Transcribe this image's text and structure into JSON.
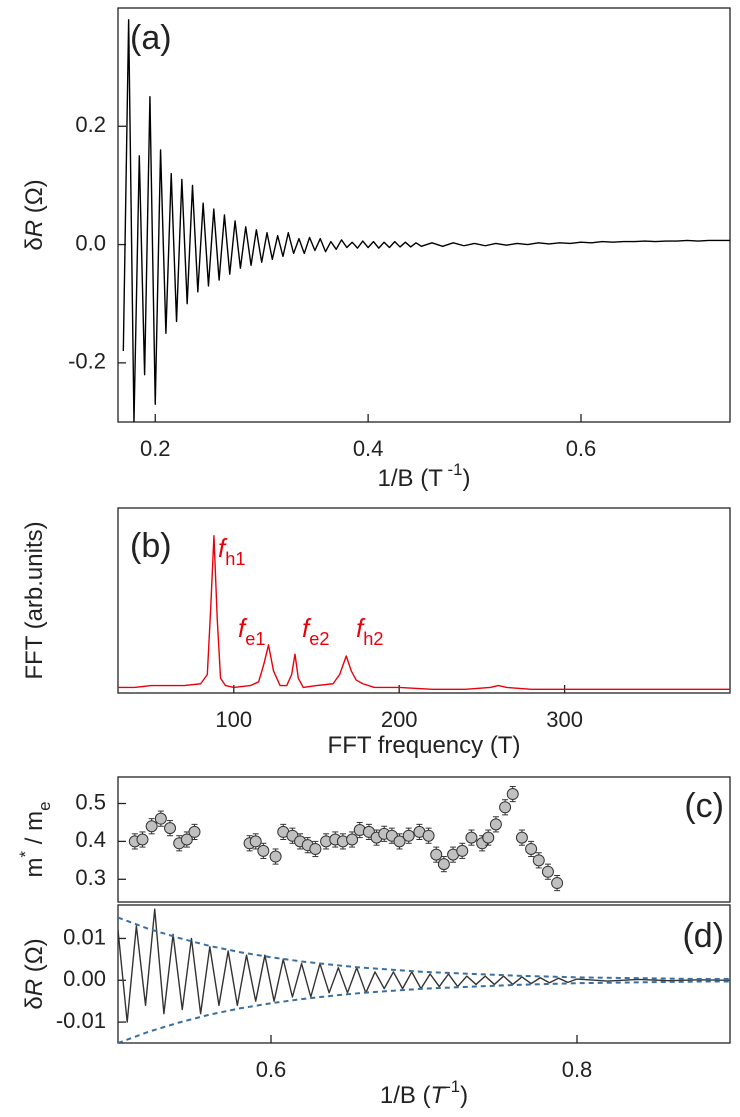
{
  "chart_data": [
    {
      "type": "line",
      "panel_label": "(a)",
      "ylabel": [
        {
          "text": "δ"
        },
        {
          "text": "R",
          "italic": true
        },
        {
          "text": " (Ω)"
        }
      ],
      "xlabel": [
        {
          "text": "1/B (T"
        },
        {
          "text": " -1",
          "sup": true
        },
        {
          "text": ")"
        }
      ],
      "xlim": [
        0.165,
        0.74
      ],
      "ylim": [
        -0.3,
        0.4
      ],
      "xticks": [
        0.2,
        0.4,
        0.6
      ],
      "yticks": [
        -0.2,
        {
          "value": 0,
          "label": "0.0"
        },
        0.2
      ],
      "series": [
        {
          "color": "#000000",
          "x": [
            0.17,
            0.175,
            0.18,
            0.185,
            0.19,
            0.195,
            0.2,
            0.205,
            0.21,
            0.215,
            0.22,
            0.225,
            0.23,
            0.235,
            0.24,
            0.245,
            0.25,
            0.255,
            0.26,
            0.265,
            0.27,
            0.275,
            0.28,
            0.285,
            0.29,
            0.295,
            0.3,
            0.305,
            0.31,
            0.315,
            0.32,
            0.325,
            0.33,
            0.335,
            0.34,
            0.345,
            0.35,
            0.355,
            0.36,
            0.365,
            0.37,
            0.375,
            0.38,
            0.385,
            0.39,
            0.395,
            0.4,
            0.405,
            0.41,
            0.415,
            0.42,
            0.425,
            0.43,
            0.435,
            0.44,
            0.445,
            0.45,
            0.46,
            0.47,
            0.48,
            0.49,
            0.5,
            0.51,
            0.52,
            0.53,
            0.54,
            0.55,
            0.56,
            0.57,
            0.58,
            0.59,
            0.6,
            0.61,
            0.62,
            0.63,
            0.64,
            0.65,
            0.66,
            0.67,
            0.68,
            0.69,
            0.7,
            0.71,
            0.72,
            0.73,
            0.74
          ],
          "values": [
            -0.18,
            0.38,
            -0.3,
            0.15,
            -0.22,
            0.25,
            -0.27,
            0.16,
            -0.15,
            0.12,
            -0.13,
            0.11,
            -0.1,
            0.1,
            -0.08,
            0.07,
            -0.07,
            0.06,
            -0.06,
            0.05,
            -0.05,
            0.04,
            -0.04,
            0.03,
            -0.035,
            0.025,
            -0.03,
            0.02,
            -0.025,
            0.015,
            -0.02,
            0.02,
            -0.015,
            0.01,
            -0.015,
            0.012,
            -0.01,
            0.01,
            -0.012,
            0.005,
            -0.008,
            0.008,
            -0.005,
            0.004,
            -0.006,
            0.006,
            -0.005,
            0.005,
            -0.006,
            0.004,
            -0.005,
            0.005,
            -0.004,
            0.004,
            -0.004,
            0.003,
            -0.003,
            0.003,
            -0.003,
            0.003,
            -0.002,
            0.002,
            -0.002,
            0.002,
            -0.001,
            0.002,
            0,
            0.003,
            0.001,
            0.003,
            0.002,
            0.004,
            0.003,
            0.005,
            0.004,
            0.005,
            0.005,
            0.006,
            0.005,
            0.006,
            0.006,
            0.007,
            0.006,
            0.007,
            0.007,
            0.007
          ]
        }
      ]
    },
    {
      "type": "line",
      "panel_label": "(b)",
      "ylabel": [
        {
          "text": "FFT (arb.units)"
        }
      ],
      "xlabel": [
        {
          "text": "FFT frequency (T)"
        }
      ],
      "xlim": [
        30,
        400
      ],
      "ylim": [
        0,
        1
      ],
      "xticks": [
        100,
        200,
        300
      ],
      "annotations": [
        [
          {
            "text": "f",
            "italic": true
          },
          {
            "text": "h1",
            "sub": true
          }
        ],
        [
          {
            "text": "f",
            "italic": true
          },
          {
            "text": "e1",
            "sub": true
          }
        ],
        [
          {
            "text": "f",
            "italic": true
          },
          {
            "text": "e2",
            "sub": true
          }
        ],
        [
          {
            "text": "f",
            "italic": true
          },
          {
            "text": "h2",
            "sub": true
          }
        ]
      ],
      "annotation_color": "#e8000b",
      "series": [
        {
          "color": "#e8000b",
          "x": [
            30,
            40,
            50,
            60,
            70,
            80,
            84,
            86,
            88,
            90,
            92,
            95,
            100,
            110,
            115,
            118,
            121,
            124,
            128,
            132,
            135,
            137,
            139,
            142,
            150,
            160,
            164,
            168,
            171,
            174,
            178,
            185,
            200,
            220,
            240,
            255,
            260,
            265,
            280,
            300,
            350,
            400
          ],
          "values": [
            0.03,
            0.03,
            0.04,
            0.04,
            0.04,
            0.05,
            0.1,
            0.45,
            0.85,
            0.4,
            0.08,
            0.04,
            0.03,
            0.04,
            0.06,
            0.15,
            0.26,
            0.12,
            0.04,
            0.04,
            0.1,
            0.21,
            0.08,
            0.03,
            0.04,
            0.05,
            0.1,
            0.2,
            0.12,
            0.07,
            0.05,
            0.03,
            0.03,
            0.02,
            0.02,
            0.03,
            0.04,
            0.03,
            0.02,
            0.02,
            0.02,
            0.02
          ]
        }
      ]
    },
    {
      "type": "scatter",
      "panel_label": "(c)",
      "ylabel": [
        {
          "text": "m"
        },
        {
          "text": "*",
          "sup": true
        },
        {
          "text": " / m"
        },
        {
          "text": "e",
          "sub": true
        }
      ],
      "xlim": [
        0.5,
        0.9
      ],
      "ylim": [
        0.24,
        0.57
      ],
      "yticks": [
        0.3,
        0.4,
        0.5
      ],
      "series": [
        {
          "color": "#c0c0c0",
          "edge_color": "#333333",
          "x": [
            0.511,
            0.516,
            0.522,
            0.528,
            0.534,
            0.54,
            0.545,
            0.55,
            0.586,
            0.59,
            0.595,
            0.603,
            0.608,
            0.614,
            0.619,
            0.624,
            0.629,
            0.636,
            0.642,
            0.647,
            0.653,
            0.658,
            0.664,
            0.669,
            0.674,
            0.679,
            0.684,
            0.69,
            0.697,
            0.703,
            0.708,
            0.713,
            0.719,
            0.725,
            0.731,
            0.738,
            0.742,
            0.747,
            0.753,
            0.758,
            0.764,
            0.77,
            0.775,
            0.781,
            0.787
          ],
          "values": [
            0.4,
            0.405,
            0.44,
            0.46,
            0.435,
            0.395,
            0.405,
            0.425,
            0.395,
            0.4,
            0.375,
            0.36,
            0.425,
            0.415,
            0.4,
            0.39,
            0.38,
            0.4,
            0.405,
            0.4,
            0.405,
            0.43,
            0.425,
            0.41,
            0.42,
            0.415,
            0.4,
            0.415,
            0.425,
            0.415,
            0.365,
            0.34,
            0.365,
            0.375,
            0.41,
            0.395,
            0.41,
            0.445,
            0.49,
            0.525,
            0.41,
            0.38,
            0.35,
            0.32,
            0.29
          ],
          "errors": [
            0.02,
            0.02,
            0.02,
            0.02,
            0.02,
            0.02,
            0.02,
            0.02,
            0.02,
            0.02,
            0.02,
            0.02,
            0.02,
            0.02,
            0.02,
            0.02,
            0.02,
            0.02,
            0.02,
            0.02,
            0.02,
            0.02,
            0.02,
            0.02,
            0.02,
            0.02,
            0.02,
            0.02,
            0.02,
            0.02,
            0.02,
            0.02,
            0.02,
            0.02,
            0.02,
            0.02,
            0.02,
            0.02,
            0.02,
            0.02,
            0.02,
            0.02,
            0.02,
            0.02,
            0.02
          ]
        }
      ]
    },
    {
      "type": "line",
      "panel_label": "(d)",
      "ylabel": [
        {
          "text": "δ"
        },
        {
          "text": "R",
          "italic": true
        },
        {
          "text": " (Ω)"
        }
      ],
      "xlabel": [
        {
          "text": "1/B ("
        },
        {
          "text": "T",
          "italic": true
        },
        {
          "text": "-1",
          "sup": true
        },
        {
          "text": ")"
        }
      ],
      "xlim": [
        0.5,
        0.9
      ],
      "ylim": [
        -0.015,
        0.018
      ],
      "xticks": [
        0.6,
        0.8
      ],
      "yticks": [
        -0.01,
        {
          "value": 0,
          "label": "0.00"
        },
        0.01
      ],
      "series": [
        {
          "color": "#333333",
          "x": [
            0.5,
            0.506,
            0.512,
            0.518,
            0.524,
            0.53,
            0.536,
            0.542,
            0.548,
            0.554,
            0.56,
            0.566,
            0.572,
            0.578,
            0.584,
            0.59,
            0.596,
            0.602,
            0.608,
            0.614,
            0.62,
            0.626,
            0.632,
            0.638,
            0.644,
            0.65,
            0.656,
            0.662,
            0.668,
            0.674,
            0.68,
            0.686,
            0.692,
            0.698,
            0.704,
            0.71,
            0.716,
            0.722,
            0.728,
            0.734,
            0.74,
            0.746,
            0.752,
            0.758,
            0.764,
            0.77,
            0.776,
            0.782,
            0.788,
            0.794,
            0.8,
            0.82,
            0.84,
            0.86,
            0.88,
            0.9
          ],
          "values": [
            0.012,
            -0.01,
            0.013,
            -0.006,
            0.017,
            -0.008,
            0.011,
            -0.007,
            0.01,
            -0.008,
            0.008,
            -0.006,
            0.007,
            -0.006,
            0.006,
            -0.005,
            0.006,
            -0.005,
            0.005,
            -0.004,
            0.004,
            -0.004,
            0.004,
            -0.003,
            0.003,
            -0.003,
            0.003,
            -0.003,
            0.002,
            -0.002,
            0.002,
            -0.002,
            0.002,
            -0.002,
            0.0015,
            -0.0015,
            0.0015,
            -0.0015,
            0.001,
            -0.001,
            0.001,
            -0.001,
            0.001,
            -0.001,
            0.0008,
            -0.0008,
            0.0006,
            -0.0006,
            0.0005,
            -0.0005,
            0.0003,
            -0.0002,
            0.0002,
            -0.0001,
            0.0001,
            0
          ]
        },
        {
          "color": "#3a6fa0",
          "dashed": true,
          "x": [
            0.5,
            0.52,
            0.54,
            0.56,
            0.58,
            0.6,
            0.62,
            0.64,
            0.66,
            0.68,
            0.7,
            0.72,
            0.74,
            0.76,
            0.78,
            0.8,
            0.82,
            0.84,
            0.86,
            0.88,
            0.9
          ],
          "values": [
            0.015,
            0.0123,
            0.0101,
            0.0082,
            0.0067,
            0.0055,
            0.0045,
            0.0037,
            0.003,
            0.0025,
            0.002,
            0.0017,
            0.0014,
            0.0011,
            0.0009,
            0.0007,
            0.0006,
            0.0005,
            0.0004,
            0.0003,
            0.0003
          ]
        },
        {
          "color": "#3a6fa0",
          "dashed": true,
          "x": [
            0.5,
            0.52,
            0.54,
            0.56,
            0.58,
            0.6,
            0.62,
            0.64,
            0.66,
            0.68,
            0.7,
            0.72,
            0.74,
            0.76,
            0.78,
            0.8,
            0.82,
            0.84,
            0.86,
            0.88,
            0.9
          ],
          "values": [
            -0.015,
            -0.0123,
            -0.0101,
            -0.0082,
            -0.0067,
            -0.0055,
            -0.0045,
            -0.0037,
            -0.003,
            -0.0025,
            -0.002,
            -0.0017,
            -0.0014,
            -0.0011,
            -0.0009,
            -0.0007,
            -0.0006,
            -0.0005,
            -0.0004,
            -0.0003,
            -0.0003
          ]
        }
      ]
    }
  ]
}
